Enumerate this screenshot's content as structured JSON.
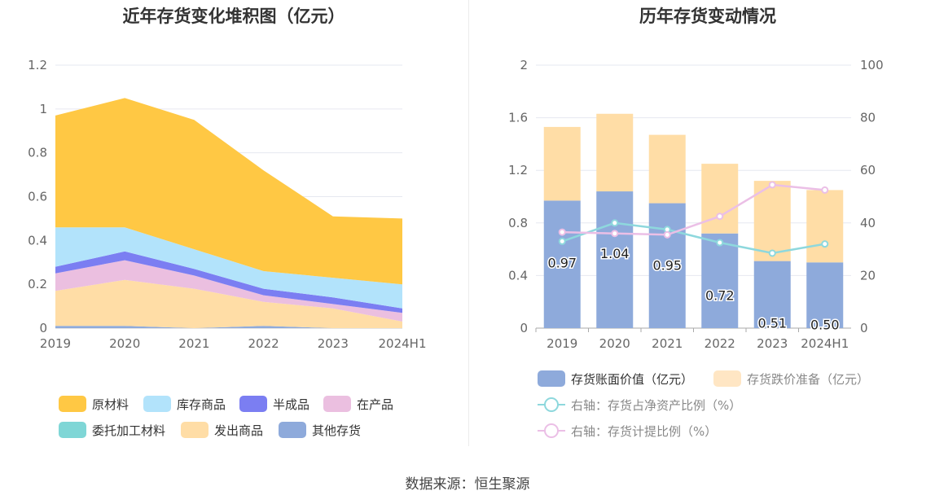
{
  "source": "数据来源：恒生聚源",
  "chart_data": [
    {
      "type": "area",
      "stacked": true,
      "title": "近年存货变化堆积图（亿元）",
      "categories": [
        "2019",
        "2020",
        "2021",
        "2022",
        "2023",
        "2024H1"
      ],
      "y_ticks": [
        "0",
        "0.2",
        "0.4",
        "0.6",
        "0.8",
        "1",
        "1.2"
      ],
      "ylim": [
        0,
        1.2
      ],
      "series": [
        {
          "name": "其他存货",
          "color": "#8eaadb",
          "values": [
            0.01,
            0.01,
            0.0,
            0.01,
            0.0,
            0.0
          ]
        },
        {
          "name": "发出商品",
          "color": "#ffdda6",
          "values": [
            0.16,
            0.21,
            0.18,
            0.11,
            0.09,
            0.03
          ]
        },
        {
          "name": "委托加工材料",
          "color": "#7fd6d6",
          "values": [
            0.0,
            0.0,
            0.0,
            0.0,
            0.0,
            0.0
          ]
        },
        {
          "name": "在产品",
          "color": "#ebbfe0",
          "values": [
            0.08,
            0.09,
            0.06,
            0.03,
            0.02,
            0.04
          ]
        },
        {
          "name": "半成品",
          "color": "#7b7ef2",
          "values": [
            0.03,
            0.04,
            0.03,
            0.03,
            0.03,
            0.02
          ]
        },
        {
          "name": "库存商品",
          "color": "#b2e3fb",
          "values": [
            0.18,
            0.11,
            0.09,
            0.08,
            0.09,
            0.11
          ]
        },
        {
          "name": "原材料",
          "color": "#ffc844",
          "values": [
            0.51,
            0.59,
            0.59,
            0.46,
            0.28,
            0.3
          ]
        }
      ],
      "legend": [
        "原材料",
        "库存商品",
        "半成品",
        "在产品",
        "委托加工材料",
        "发出商品",
        "其他存货"
      ]
    },
    {
      "type": "bar",
      "stacked": true,
      "title": "历年存货变动情况",
      "categories": [
        "2019",
        "2020",
        "2021",
        "2022",
        "2023",
        "2024H1"
      ],
      "y_ticks_left": [
        "0",
        "0.4",
        "0.8",
        "1.2",
        "1.6",
        "2"
      ],
      "y_ticks_right": [
        "0",
        "20",
        "40",
        "60",
        "80",
        "100"
      ],
      "ylim_left": [
        0,
        2
      ],
      "ylim_right": [
        0,
        100
      ],
      "bars": [
        {
          "name": "存货账面价值（亿元）",
          "color": "#8eaadb",
          "values": [
            0.97,
            1.04,
            0.95,
            0.72,
            0.51,
            0.5
          ],
          "labels": [
            "0.97",
            "1.04",
            "0.95",
            "0.72",
            "0.51",
            "0.50"
          ]
        },
        {
          "name": "存货跌价准备（亿元）",
          "color": "#ffdda6",
          "values": [
            0.56,
            0.59,
            0.52,
            0.53,
            0.61,
            0.55
          ]
        }
      ],
      "lines": [
        {
          "name": "右轴：存货占净资产比例（%）",
          "color": "#8ed8dd",
          "values": [
            33,
            40,
            37.5,
            32.5,
            28.5,
            32
          ]
        },
        {
          "name": "右轴：存货计提比例（%）",
          "color": "#ebbfe6",
          "values": [
            36.5,
            36,
            35.5,
            42.5,
            54.5,
            52.5
          ]
        }
      ]
    }
  ]
}
